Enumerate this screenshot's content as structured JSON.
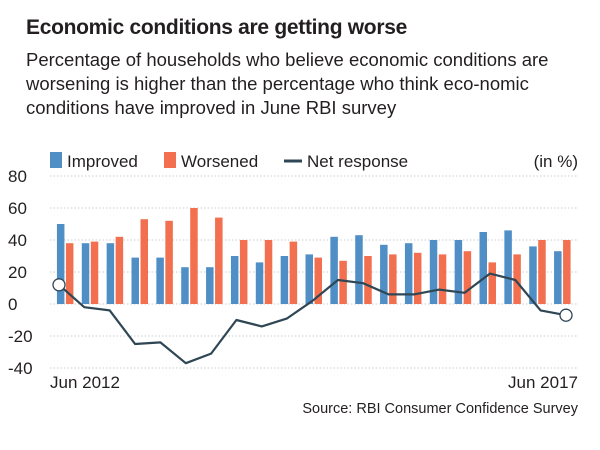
{
  "title": "Economic conditions are getting worse",
  "subtitle": "Percentage of households who believe economic conditions are worsening is higher than the percentage who think eco-nomic conditions have improved in June RBI survey",
  "source": "Source: RBI Consumer Confidence Survey",
  "colors": {
    "improved": "#4f8fc6",
    "worsened": "#f26f4f",
    "net": "#2f4655",
    "gridline": "#b9c0c5"
  },
  "chart_data": {
    "type": "bar",
    "title": "",
    "xlabel": "",
    "ylabel": "",
    "unit_label": "(in %)",
    "ylim": [
      -40,
      80
    ],
    "yticks": [
      "80",
      "60",
      "40",
      "20",
      "0",
      "-20",
      "-40"
    ],
    "ytick_values": [
      80,
      60,
      40,
      20,
      0,
      -20,
      -40
    ],
    "x_label_first": "Jun 2012",
    "x_label_last": "Jun 2017",
    "legend_position": "top-left",
    "legend": [
      "Improved",
      "Worsened",
      "Net response"
    ],
    "series": [
      {
        "name": "Improved",
        "type": "bar",
        "values": [
          50,
          38,
          38,
          29,
          29,
          23,
          23,
          30,
          26,
          30,
          31,
          42,
          43,
          37,
          38,
          40,
          40,
          45,
          46,
          36,
          33
        ]
      },
      {
        "name": "Worsened",
        "type": "bar",
        "values": [
          38,
          39,
          42,
          53,
          52,
          60,
          54,
          40,
          40,
          39,
          29,
          27,
          30,
          31,
          32,
          31,
          33,
          26,
          31,
          40,
          40
        ]
      },
      {
        "name": "Net response",
        "type": "line",
        "values": [
          12,
          -2,
          -4,
          -25,
          -24,
          -37,
          -31,
          -10,
          -14,
          -9,
          2,
          15,
          13,
          6,
          6,
          9,
          7,
          19,
          15,
          -4,
          -7
        ]
      }
    ]
  }
}
